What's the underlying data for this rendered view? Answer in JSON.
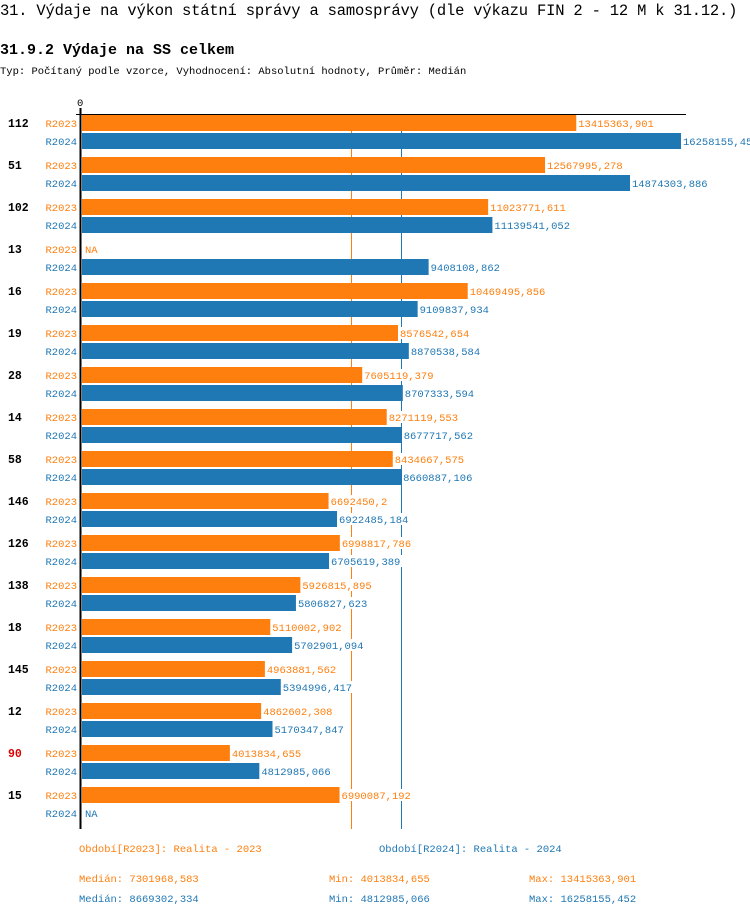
{
  "page": {
    "title": "31. Výdaje na výkon státní správy a samosprávy (dle výkazu FIN 2 - 12 M k 31.12.)",
    "subtitle": "31.9.2 Výdaje na SS celkem",
    "description": "Typ: Počítaný podle vzorce, Vyhodnocení: Absolutní hodnoty, Průměr: Medián"
  },
  "colors": {
    "R2023": "#ff7f0e",
    "R2024": "#1f77b4",
    "highlight": "#e00000",
    "axis": "#000000"
  },
  "chart_data": {
    "type": "bar",
    "orientation": "horizontal",
    "title": "31.9.2 Výdaje na SS celkem",
    "xlabel": "",
    "ylabel": "",
    "xlim": [
      0,
      16258155.452
    ],
    "x_tick_labels": [
      "0"
    ],
    "grid": false,
    "categories": [
      "112",
      "51",
      "102",
      "13",
      "16",
      "19",
      "28",
      "14",
      "58",
      "146",
      "126",
      "138",
      "18",
      "145",
      "12",
      "90",
      "15"
    ],
    "highlighted_category": "90",
    "series": [
      {
        "name": "R2023",
        "values": [
          13415363.901,
          12567995.278,
          11023771.611,
          null,
          10469495.856,
          8576542.654,
          7605119.379,
          8271119.553,
          8434667.575,
          6692450.2,
          6998817.786,
          5926815.895,
          5110002.902,
          4963881.562,
          4862602.308,
          4013834.655,
          6990087.192
        ],
        "labels": [
          "13415363,901",
          "12567995,278",
          "11023771,611",
          "NA",
          "10469495,856",
          "8576542,654",
          "7605119,379",
          "8271119,553",
          "8434667,575",
          "6692450,2",
          "6998817,786",
          "5926815,895",
          "5110002,902",
          "4963881,562",
          "4862602,308",
          "4013834,655",
          "6990087,192"
        ],
        "median": 7301968.583
      },
      {
        "name": "R2024",
        "values": [
          16258155.452,
          14874303.886,
          11139541.052,
          9408108.862,
          9109837.934,
          8870538.584,
          8707333.594,
          8677717.562,
          8660887.106,
          6922485.184,
          6705619.389,
          5806827.623,
          5702901.094,
          5394996.417,
          5170347.847,
          4812985.066,
          null
        ],
        "labels": [
          "16258155,45",
          "14874303,886",
          "11139541,052",
          "9408108,862",
          "9109837,934",
          "8870538,584",
          "8707333,594",
          "8677717,562",
          "8660887,106",
          "6922485,184",
          "6705619,389",
          "5806827,623",
          "5702901,094",
          "5394996,417",
          "5170347,847",
          "4812985,066",
          "NA"
        ],
        "median": 8669302.334
      }
    ],
    "legend": [
      {
        "series": "R2023",
        "label": "Období[R2023]: Realita - 2023",
        "median": "Medián: 7301968,583",
        "min": "Min: 4013834,655",
        "max": "Max: 13415363,901"
      },
      {
        "series": "R2024",
        "label": "Období[R2024]: Realita - 2024",
        "median": "Medián: 8669302,334",
        "min": "Min: 4812985,066",
        "max": "Max: 16258155,452"
      }
    ],
    "legend_position": "bottom"
  }
}
